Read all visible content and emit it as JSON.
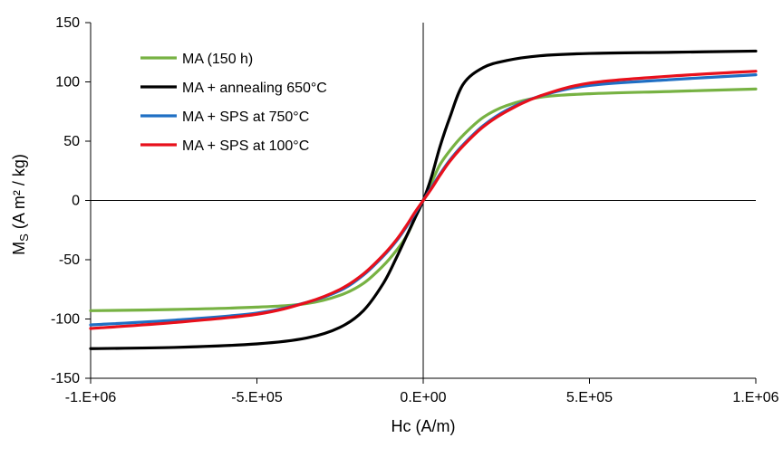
{
  "chart_data": {
    "type": "line",
    "xlabel": "Hc (A/m)",
    "ylabel": "M",
    "ylabel_sub": "S",
    "ylabel_units": " (A m² / kg)",
    "xlim": [
      -1000000,
      1000000
    ],
    "ylim": [
      -150,
      150
    ],
    "x_ticks": [
      -1000000,
      -500000,
      0,
      500000,
      1000000
    ],
    "x_tick_labels": [
      "-1.E+06",
      "-5.E+05",
      "0.E+00",
      "5.E+05",
      "1.E+06"
    ],
    "y_ticks": [
      -150,
      -100,
      -50,
      0,
      50,
      100,
      150
    ],
    "y_tick_labels": [
      "-150",
      "-100",
      "-50",
      "0",
      "50",
      "100",
      "150"
    ],
    "grid": false,
    "legend_position": "top-left",
    "series": [
      {
        "name": "MA (150 h)",
        "color": "#77b243",
        "x": [
          -1000000,
          -750000,
          -500000,
          -350000,
          -250000,
          -180000,
          -120000,
          -80000,
          -50000,
          -25000,
          0,
          25000,
          50000,
          80000,
          120000,
          180000,
          250000,
          350000,
          500000,
          750000,
          1000000
        ],
        "y": [
          -93,
          -92,
          -90,
          -87,
          -80,
          -70,
          -55,
          -42,
          -30,
          -15,
          0,
          15,
          30,
          42,
          55,
          70,
          80,
          87,
          90,
          92,
          94
        ]
      },
      {
        "name": "MA + annealing 650°C",
        "color": "#000000",
        "x": [
          -1000000,
          -750000,
          -500000,
          -350000,
          -250000,
          -180000,
          -120000,
          -80000,
          -50000,
          -25000,
          0,
          25000,
          50000,
          80000,
          120000,
          180000,
          250000,
          350000,
          500000,
          750000,
          1000000
        ],
        "y": [
          -125,
          -124,
          -121,
          -116,
          -107,
          -93,
          -70,
          -48,
          -30,
          -15,
          0,
          20,
          45,
          70,
          98,
          112,
          118,
          122,
          124,
          125,
          126
        ]
      },
      {
        "name": "MA + SPS at 750°C",
        "color": "#1f6fc4",
        "x": [
          -1000000,
          -750000,
          -500000,
          -350000,
          -250000,
          -180000,
          -120000,
          -80000,
          -50000,
          -25000,
          0,
          25000,
          50000,
          80000,
          120000,
          180000,
          250000,
          350000,
          500000,
          750000,
          1000000
        ],
        "y": [
          -105,
          -101,
          -95,
          -86,
          -76,
          -63,
          -47,
          -34,
          -22,
          -11,
          0,
          11,
          22,
          34,
          47,
          63,
          76,
          88,
          97,
          102,
          106
        ]
      },
      {
        "name": "MA + SPS at 100°C",
        "color": "#e8101b",
        "x": [
          -1000000,
          -750000,
          -500000,
          -350000,
          -250000,
          -180000,
          -120000,
          -80000,
          -50000,
          -25000,
          0,
          25000,
          50000,
          80000,
          120000,
          180000,
          250000,
          350000,
          500000,
          750000,
          1000000
        ],
        "y": [
          -108,
          -103,
          -96,
          -86,
          -75,
          -62,
          -46,
          -33,
          -21,
          -10,
          0,
          10,
          21,
          33,
          46,
          62,
          75,
          88,
          99,
          105,
          109
        ]
      }
    ]
  }
}
